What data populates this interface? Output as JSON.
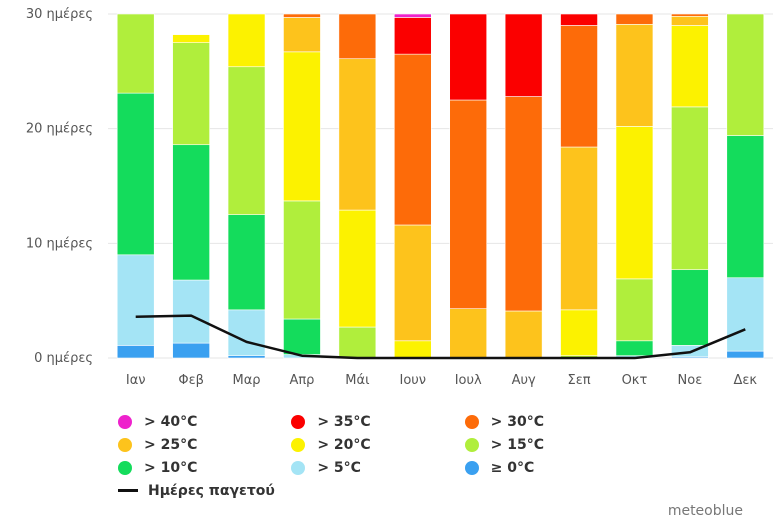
{
  "chart_data": {
    "type": "bar",
    "stacked": true,
    "categories": [
      "Ιαν",
      "Φεβ",
      "Μαρ",
      "Απρ",
      "Μάι",
      "Ιουν",
      "Ιουλ",
      "Αυγ",
      "Σεπ",
      "Οκτ",
      "Νοε",
      "Δεκ"
    ],
    "y_tick_labels": [
      "0 ημέρες",
      "10 ημέρες",
      "20 ημέρες",
      "30 ημέρες"
    ],
    "ylim": [
      0,
      30
    ],
    "series": [
      {
        "name": "≥ 0°C",
        "color": "#3aa0f0",
        "values": [
          1.1,
          1.3,
          0.2,
          0.0,
          0.0,
          0.0,
          0.0,
          0.0,
          0.0,
          0.0,
          0.1,
          0.6
        ]
      },
      {
        "name": "> 5°C",
        "color": "#a4e4f5",
        "values": [
          7.9,
          5.5,
          4.0,
          0.3,
          0.0,
          0.0,
          0.0,
          0.0,
          0.0,
          0.2,
          1.0,
          6.4
        ]
      },
      {
        "name": "> 10°C",
        "color": "#14dc5c",
        "values": [
          14.1,
          11.8,
          8.3,
          3.1,
          0.0,
          0.0,
          0.0,
          0.0,
          0.0,
          1.3,
          6.6,
          12.4
        ]
      },
      {
        "name": "> 15°C",
        "color": "#b0ee3c",
        "values": [
          6.9,
          8.9,
          12.9,
          10.3,
          2.7,
          0.0,
          0.0,
          0.0,
          0.2,
          5.4,
          14.2,
          10.6
        ]
      },
      {
        "name": "> 20°C",
        "color": "#fcf200",
        "values": [
          0.0,
          0.7,
          4.6,
          13.0,
          10.2,
          1.5,
          0.0,
          0.0,
          4.0,
          13.3,
          7.1,
          0.0
        ]
      },
      {
        "name": "> 25°C",
        "color": "#fdc31c",
        "values": [
          0.0,
          0.0,
          0.0,
          3.0,
          13.2,
          10.1,
          4.3,
          4.1,
          14.2,
          8.9,
          0.8,
          0.0
        ]
      },
      {
        "name": "> 30°C",
        "color": "#fd6b09",
        "values": [
          0.0,
          0.0,
          0.0,
          0.3,
          3.9,
          14.9,
          18.2,
          18.7,
          10.6,
          0.9,
          0.2,
          0.0
        ]
      },
      {
        "name": "> 35°C",
        "color": "#fb0000",
        "values": [
          0.0,
          0.0,
          0.0,
          0.0,
          0.0,
          3.2,
          7.5,
          7.2,
          1.0,
          0.0,
          0.0,
          0.0
        ]
      },
      {
        "name": "> 40°C",
        "color": "#ee22cc",
        "values": [
          0.0,
          0.0,
          0.0,
          0.0,
          0.0,
          0.3,
          0.0,
          0.0,
          0.0,
          0.0,
          0.0,
          0.0
        ]
      }
    ],
    "line": {
      "name": "Ημέρες παγετού",
      "color": "#111111",
      "values": [
        3.6,
        3.7,
        1.4,
        0.2,
        0.0,
        0.0,
        0.0,
        0.0,
        0.0,
        0.0,
        0.5,
        2.5
      ]
    },
    "legend_position": "bottom",
    "grid": true
  },
  "legend": {
    "rows": [
      [
        {
          "label": "> 40°C",
          "color": "#ee22cc"
        },
        {
          "label": "> 35°C",
          "color": "#fb0000"
        },
        {
          "label": "> 30°C",
          "color": "#fd6b09"
        }
      ],
      [
        {
          "label": "> 25°C",
          "color": "#fdc31c"
        },
        {
          "label": "> 20°C",
          "color": "#fcf200"
        },
        {
          "label": "> 15°C",
          "color": "#b0ee3c"
        }
      ],
      [
        {
          "label": "> 10°C",
          "color": "#14dc5c"
        },
        {
          "label": "> 5°C",
          "color": "#a4e4f5"
        },
        {
          "label": "≥ 0°C",
          "color": "#3aa0f0"
        }
      ]
    ],
    "line_label": "Ημέρες παγετού"
  },
  "credit": "meteoblue"
}
